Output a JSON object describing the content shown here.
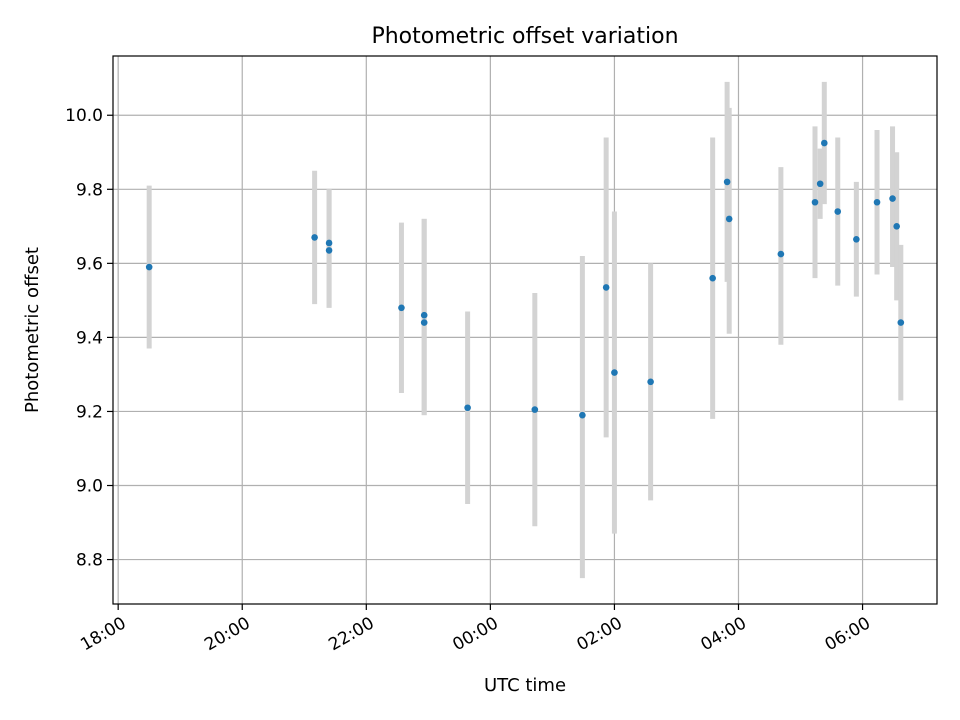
{
  "chart_data": {
    "type": "scatter",
    "title": "Photometric offset variation",
    "xlabel": "UTC time",
    "ylabel": "Photometric offset",
    "xlim": [
      "2000-01-01T17:55",
      "2000-01-02T07:12"
    ],
    "ylim": [
      8.68,
      10.16
    ],
    "x_ticks": [
      {
        "t": "2000-01-01T18:00",
        "label": "18:00"
      },
      {
        "t": "2000-01-01T20:00",
        "label": "20:00"
      },
      {
        "t": "2000-01-01T22:00",
        "label": "22:00"
      },
      {
        "t": "2000-01-02T00:00",
        "label": "00:00"
      },
      {
        "t": "2000-01-02T02:00",
        "label": "02:00"
      },
      {
        "t": "2000-01-02T04:00",
        "label": "04:00"
      },
      {
        "t": "2000-01-02T06:00",
        "label": "06:00"
      }
    ],
    "y_ticks": [
      8.8,
      9.0,
      9.2,
      9.4,
      9.6,
      9.8,
      10.0
    ],
    "grid": true,
    "colors": {
      "point": "#1f77b4",
      "errorbar": "#d3d3d3"
    },
    "points": [
      {
        "t": "2000-01-01T18:30",
        "y": 9.59,
        "lo": 9.37,
        "hi": 9.81
      },
      {
        "t": "2000-01-01T21:10",
        "y": 9.67,
        "lo": 9.49,
        "hi": 9.85
      },
      {
        "t": "2000-01-01T21:24",
        "y": 9.655,
        "lo": 9.48,
        "hi": 9.8
      },
      {
        "t": "2000-01-01T21:24",
        "y": 9.635,
        "lo": 9.48,
        "hi": 9.8
      },
      {
        "t": "2000-01-01T22:34",
        "y": 9.48,
        "lo": 9.25,
        "hi": 9.71
      },
      {
        "t": "2000-01-01T22:56",
        "y": 9.46,
        "lo": 9.19,
        "hi": 9.72
      },
      {
        "t": "2000-01-01T22:56",
        "y": 9.44,
        "lo": 9.19,
        "hi": 9.72
      },
      {
        "t": "2000-01-01T23:38",
        "y": 9.21,
        "lo": 8.95,
        "hi": 9.47
      },
      {
        "t": "2000-01-02T00:43",
        "y": 9.205,
        "lo": 8.89,
        "hi": 9.52
      },
      {
        "t": "2000-01-02T01:29",
        "y": 9.19,
        "lo": 8.75,
        "hi": 9.62
      },
      {
        "t": "2000-01-02T01:52",
        "y": 9.535,
        "lo": 9.13,
        "hi": 9.94
      },
      {
        "t": "2000-01-02T02:00",
        "y": 9.305,
        "lo": 8.87,
        "hi": 9.74
      },
      {
        "t": "2000-01-02T02:35",
        "y": 9.28,
        "lo": 8.96,
        "hi": 9.6
      },
      {
        "t": "2000-01-02T03:35",
        "y": 9.56,
        "lo": 9.18,
        "hi": 9.94
      },
      {
        "t": "2000-01-02T03:49",
        "y": 9.82,
        "lo": 9.55,
        "hi": 10.09
      },
      {
        "t": "2000-01-02T03:51",
        "y": 9.72,
        "lo": 9.41,
        "hi": 10.02
      },
      {
        "t": "2000-01-02T04:41",
        "y": 9.625,
        "lo": 9.38,
        "hi": 9.86
      },
      {
        "t": "2000-01-02T05:14",
        "y": 9.765,
        "lo": 9.56,
        "hi": 9.97
      },
      {
        "t": "2000-01-02T05:19",
        "y": 9.815,
        "lo": 9.72,
        "hi": 9.91
      },
      {
        "t": "2000-01-02T05:23",
        "y": 9.925,
        "lo": 9.76,
        "hi": 10.09
      },
      {
        "t": "2000-01-02T05:36",
        "y": 9.74,
        "lo": 9.54,
        "hi": 9.94
      },
      {
        "t": "2000-01-02T05:54",
        "y": 9.665,
        "lo": 9.51,
        "hi": 9.82
      },
      {
        "t": "2000-01-02T06:14",
        "y": 9.765,
        "lo": 9.57,
        "hi": 9.96
      },
      {
        "t": "2000-01-02T06:29",
        "y": 9.775,
        "lo": 9.59,
        "hi": 9.97
      },
      {
        "t": "2000-01-02T06:33",
        "y": 9.7,
        "lo": 9.5,
        "hi": 9.9
      },
      {
        "t": "2000-01-02T06:37",
        "y": 9.44,
        "lo": 9.23,
        "hi": 9.65
      }
    ]
  }
}
